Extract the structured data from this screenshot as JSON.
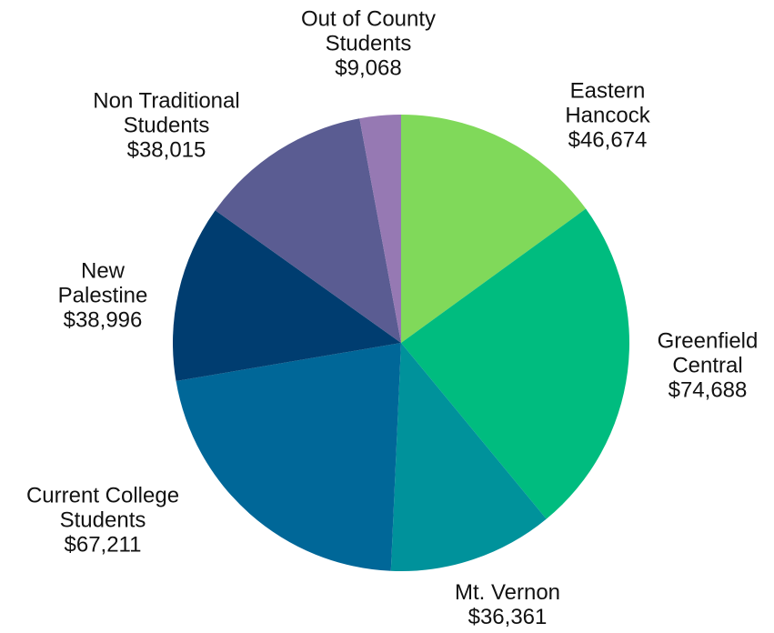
{
  "chart_data": {
    "type": "pie",
    "categories": [
      "Eastern Hancock",
      "Greenfield Central",
      "Mt. Vernon",
      "Current College Students",
      "New Palestine",
      "Non Traditional Students",
      "Out of County Students"
    ],
    "values": [
      46674,
      74688,
      36361,
      67211,
      38996,
      38015,
      9068
    ],
    "value_labels": [
      "$46,674",
      "$74,688",
      "$36,361",
      "$67,211",
      "$38,996",
      "$38,015",
      "$9,068"
    ],
    "colors": [
      "#80d95a",
      "#00bc7f",
      "#00929b",
      "#006798",
      "#003d70",
      "#5a5c92",
      "#9679b3"
    ]
  }
}
